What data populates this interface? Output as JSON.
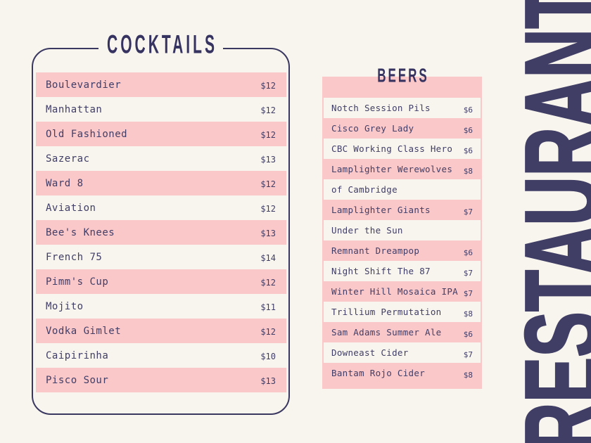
{
  "colors": {
    "background": "#f8f5ee",
    "pink": "#fbc8c9",
    "navy_text": "#403d66",
    "navy_title": "#363361",
    "navy_banner": "#413e66"
  },
  "banner": {
    "text": "RESTAURANT"
  },
  "cocktails": {
    "title": "COCKTAILS",
    "items": [
      {
        "name": "Boulevardier",
        "price": "$12"
      },
      {
        "name": "Manhattan",
        "price": "$12"
      },
      {
        "name": "Old Fashioned",
        "price": "$12"
      },
      {
        "name": "Sazerac",
        "price": "$13"
      },
      {
        "name": "Ward 8",
        "price": "$12"
      },
      {
        "name": "Aviation",
        "price": "$12"
      },
      {
        "name": "Bee's Knees",
        "price": "$13"
      },
      {
        "name": "French 75",
        "price": "$14"
      },
      {
        "name": "Pimm's Cup",
        "price": "$12"
      },
      {
        "name": "Mojito",
        "price": "$11"
      },
      {
        "name": "Vodka Gimlet",
        "price": "$12"
      },
      {
        "name": "Caipirinha",
        "price": "$10"
      },
      {
        "name": "Pisco Sour",
        "price": "$13"
      }
    ]
  },
  "beers": {
    "title": "BEERS",
    "rows": [
      {
        "text": "Notch Session Pils",
        "price": "$6"
      },
      {
        "text": "Cisco Grey Lady",
        "price": "$6"
      },
      {
        "text": "CBC Working Class Hero",
        "price": "$6"
      },
      {
        "text": "Lamplighter Werewolves",
        "price": "$8"
      },
      {
        "text": "of Cambridge",
        "price": ""
      },
      {
        "text": "Lamplighter Giants",
        "price": "$7"
      },
      {
        "text": "Under the Sun",
        "price": ""
      },
      {
        "text": "Remnant Dreampop",
        "price": "$6"
      },
      {
        "text": "Night Shift The 87",
        "price": "$7"
      },
      {
        "text": "Winter Hill Mosaica IPA",
        "price": "$7"
      },
      {
        "text": "Trillium Permutation",
        "price": "$8"
      },
      {
        "text": "Sam Adams Summer Ale",
        "price": "$6"
      },
      {
        "text": "Downeast Cider",
        "price": "$7"
      },
      {
        "text": "Bantam Rojo Cider",
        "price": "$8"
      }
    ]
  }
}
